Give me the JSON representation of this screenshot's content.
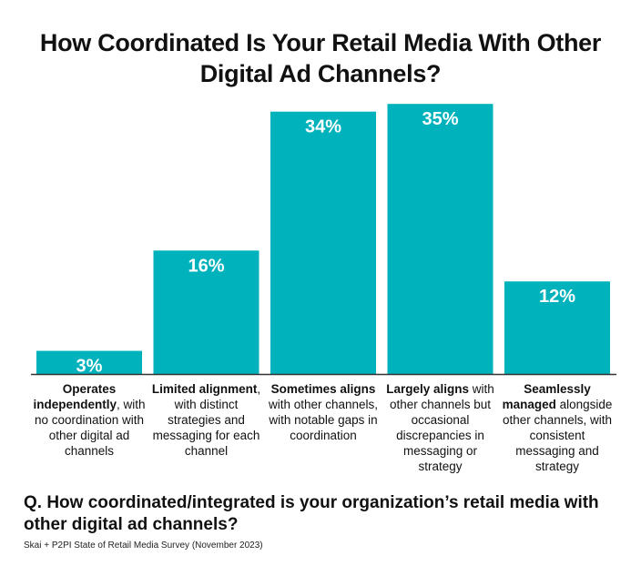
{
  "title_lines": [
    "How Coordinated Is Your Retail Media With Other",
    "Digital Ad Channels?"
  ],
  "question": "Q. How coordinated/integrated is your organization’s retail media with other digital ad channels?",
  "source": "Skai + P2PI State of Retail Media Survey (November 2023)",
  "colors": {
    "bar": "#00b2bc",
    "axis": "#333333",
    "label": "#ffffff"
  },
  "chart_data": {
    "type": "bar",
    "title": "How Coordinated Is Your Retail Media With Other Digital Ad Channels?",
    "categories": [
      {
        "bold": "Operates independently",
        "rest": ", with no coordination with other digital ad channels"
      },
      {
        "bold": "Limited alignment",
        "rest": ", with distinct strategies and messaging for each channel"
      },
      {
        "bold": "Sometimes aligns",
        "rest": " with other channels, with notable gaps in coordination"
      },
      {
        "bold": "Largely aligns",
        "rest": " with other channels but occasional discrepancies in messaging or strategy"
      },
      {
        "bold": "Seamlessly managed",
        "rest": " alongside other channels, with consistent messaging and strategy"
      }
    ],
    "values": [
      3,
      16,
      34,
      35,
      12
    ],
    "value_labels": [
      "3%",
      "16%",
      "34%",
      "35%",
      "12%"
    ],
    "unit": "%",
    "ylim": [
      0,
      35
    ]
  }
}
